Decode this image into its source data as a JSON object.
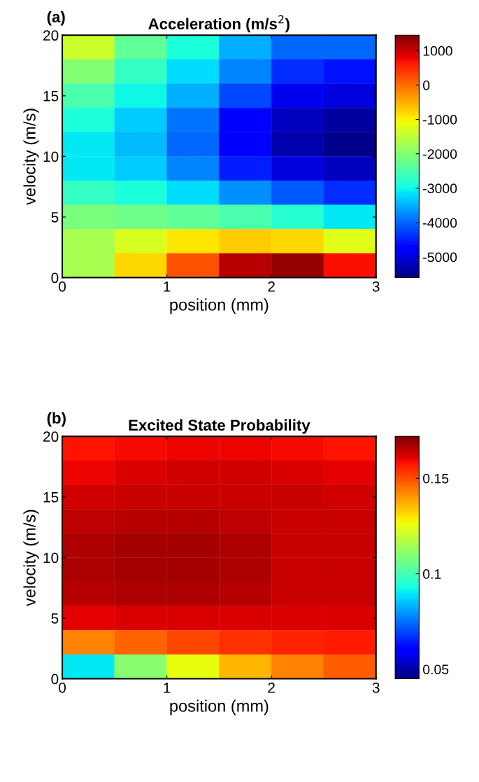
{
  "chart_data": [
    {
      "type": "heatmap",
      "title": "Acceleration (m/s$^{2}$)",
      "xlabel": "position (mm)",
      "ylabel": "velocity (m/s)",
      "annotations": [
        "(a)"
      ],
      "x": [
        0.25,
        0.75,
        1.25,
        1.75,
        2.25,
        2.75
      ],
      "y": [
        19,
        17,
        15,
        13,
        11,
        9,
        7,
        5,
        3,
        1
      ],
      "cells": [
        [
          -1400,
          -2300,
          -2900,
          -3500,
          -4000,
          -4000
        ],
        [
          -2000,
          -2700,
          -3200,
          -3800,
          -4400,
          -4600
        ],
        [
          -2500,
          -3000,
          -3500,
          -4200,
          -4900,
          -5000
        ],
        [
          -2900,
          -3300,
          -3900,
          -4700,
          -5200,
          -5400
        ],
        [
          -3100,
          -3400,
          -4000,
          -4800,
          -5300,
          -5500
        ],
        [
          -3100,
          -3300,
          -3800,
          -4500,
          -5000,
          -5200
        ],
        [
          -2700,
          -2900,
          -3200,
          -3700,
          -4100,
          -4400
        ],
        [
          -2100,
          -2200,
          -2300,
          -2500,
          -2800,
          -3100
        ],
        [
          -1700,
          -1300,
          -900,
          -700,
          -800,
          -1200
        ],
        [
          -1700,
          -800,
          200,
          1100,
          1300,
          700
        ]
      ],
      "xlim": [
        0,
        3
      ],
      "xticks": [
        0,
        1,
        2,
        3
      ],
      "ylim": [
        0,
        20
      ],
      "yticks": [
        0,
        5,
        10,
        15,
        20
      ],
      "clim": [
        -5600,
        1450
      ],
      "cticks": [
        -5000,
        -4000,
        -3000,
        -2000,
        -1000,
        0,
        1000
      ]
    },
    {
      "type": "heatmap",
      "title": "Excited State Probability",
      "xlabel": "position (mm)",
      "ylabel": "velocity (m/s)",
      "annotations": [
        "(b)"
      ],
      "x": [
        0.25,
        0.75,
        1.25,
        1.75,
        2.25,
        2.75
      ],
      "y": [
        19,
        17,
        15,
        13,
        11,
        9,
        7,
        5,
        3,
        1
      ],
      "cells": [
        [
          0.158,
          0.159,
          0.16,
          0.16,
          0.159,
          0.158
        ],
        [
          0.16,
          0.162,
          0.163,
          0.163,
          0.162,
          0.161
        ],
        [
          0.163,
          0.164,
          0.164,
          0.164,
          0.164,
          0.163
        ],
        [
          0.165,
          0.166,
          0.166,
          0.165,
          0.164,
          0.164
        ],
        [
          0.167,
          0.168,
          0.168,
          0.167,
          0.164,
          0.164
        ],
        [
          0.167,
          0.168,
          0.168,
          0.167,
          0.164,
          0.164
        ],
        [
          0.166,
          0.167,
          0.167,
          0.166,
          0.164,
          0.164
        ],
        [
          0.161,
          0.162,
          0.162,
          0.162,
          0.162,
          0.162
        ],
        [
          0.143,
          0.147,
          0.151,
          0.154,
          0.156,
          0.157
        ],
        [
          0.09,
          0.11,
          0.125,
          0.136,
          0.143,
          0.148
        ]
      ],
      "xlim": [
        0,
        3
      ],
      "xticks": [
        0,
        1,
        2,
        3
      ],
      "ylim": [
        0,
        20
      ],
      "yticks": [
        0,
        5,
        10,
        15,
        20
      ],
      "clim": [
        0.045,
        0.172
      ],
      "cticks": [
        0.05,
        0.1,
        0.15
      ]
    }
  ]
}
